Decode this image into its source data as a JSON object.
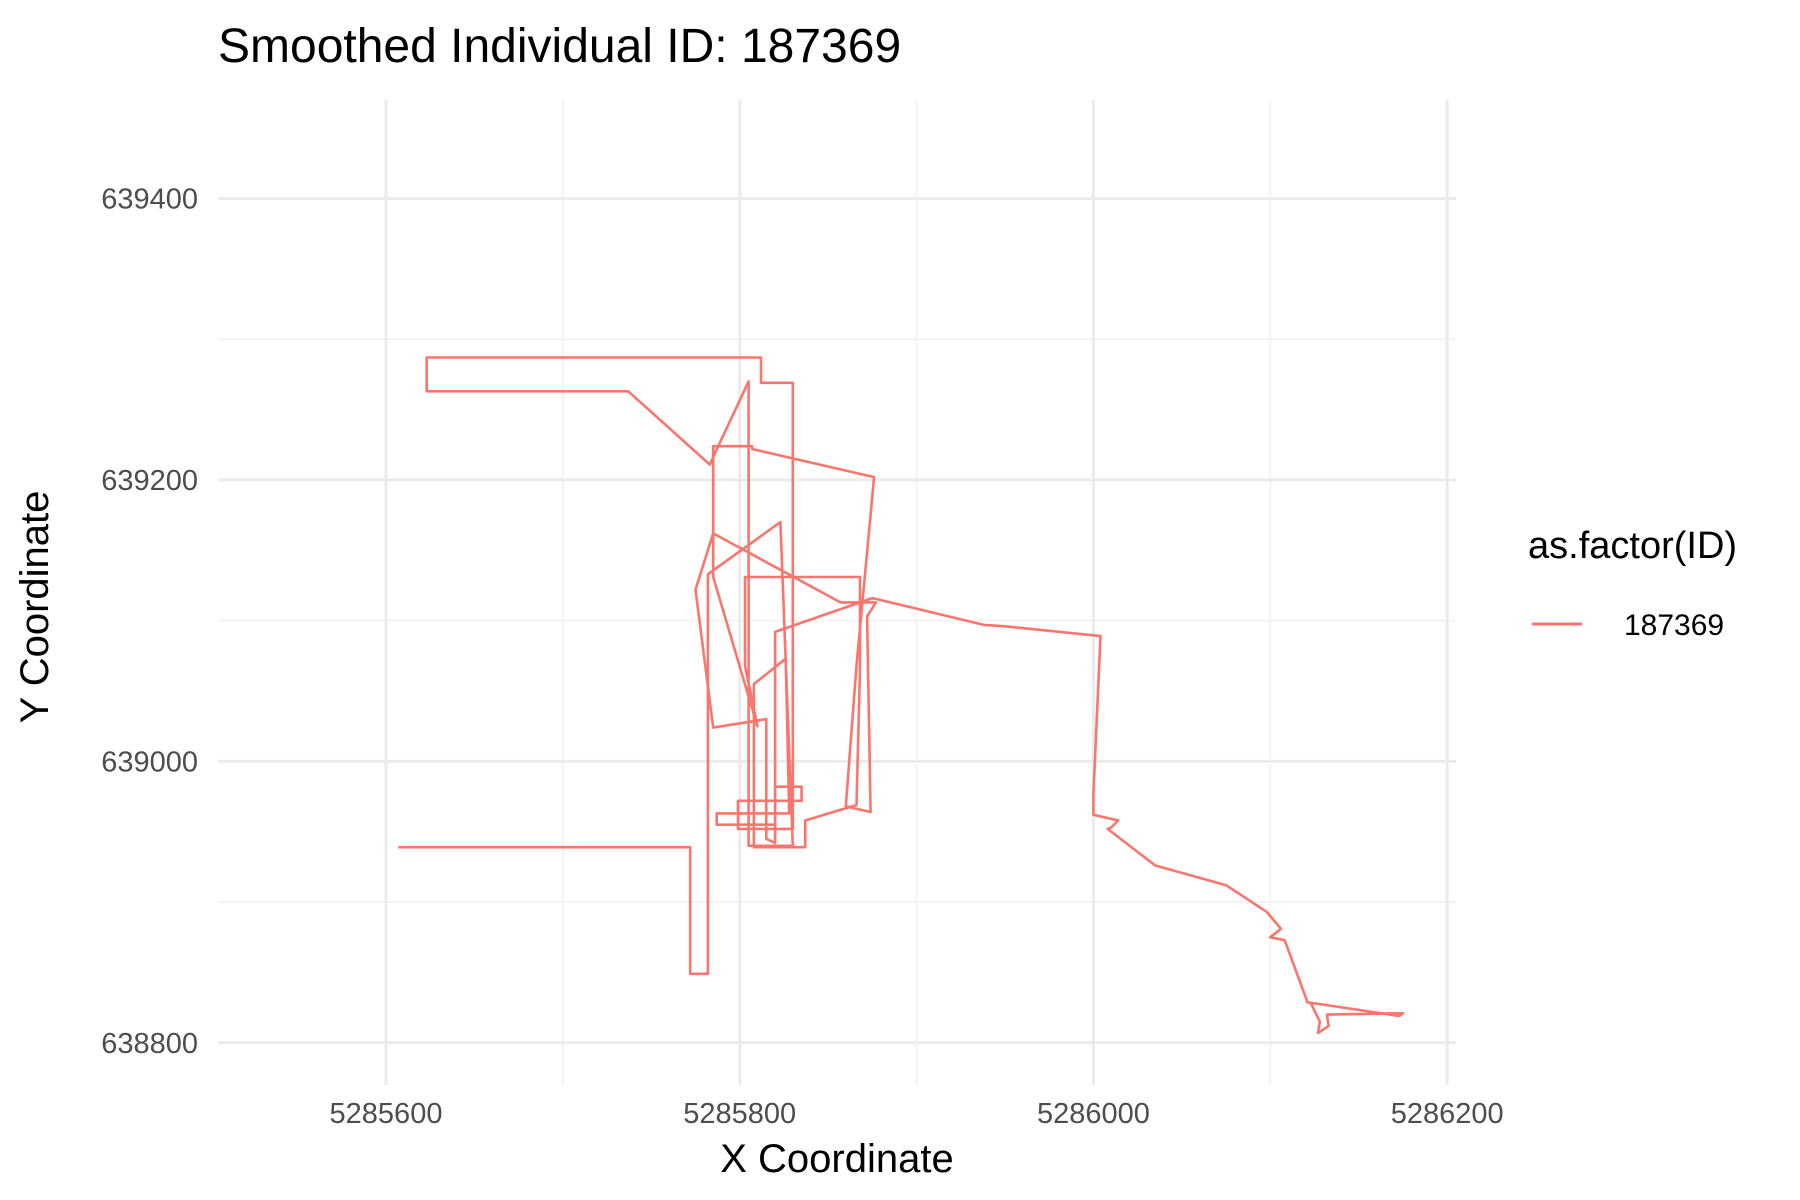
{
  "chart_data": {
    "type": "line",
    "title": "Smoothed Individual ID: 187369",
    "xlabel": "X Coordinate",
    "ylabel": "Y Coordinate",
    "xlim": [
      5285505,
      5286205
    ],
    "ylim": [
      638770,
      639470
    ],
    "x_ticks": [
      5285600,
      5285800,
      5286000,
      5286200
    ],
    "y_ticks": [
      638800,
      639000,
      639200,
      639400
    ],
    "grid": true,
    "legend": {
      "title": "as.factor(ID)",
      "position": "right"
    },
    "series": [
      {
        "name": "187369",
        "color": "#F8766D",
        "points": [
          [
            5285607,
            638939
          ],
          [
            5285772,
            638939
          ],
          [
            5285772,
            638849
          ],
          [
            5285782,
            638849
          ],
          [
            5285782,
            639133
          ],
          [
            5285823,
            639170
          ],
          [
            5285830,
            638940
          ],
          [
            5285805,
            638940
          ],
          [
            5285805,
            639270
          ],
          [
            5285783,
            639211
          ],
          [
            5285737,
            639263
          ],
          [
            5285623,
            639263
          ],
          [
            5285623,
            639287
          ],
          [
            5285812,
            639287
          ],
          [
            5285812,
            639269
          ],
          [
            5285830,
            639269
          ],
          [
            5285830,
            638952
          ],
          [
            5285799,
            638952
          ],
          [
            5285799,
            638972
          ],
          [
            5285835,
            638972
          ],
          [
            5285835,
            638982
          ],
          [
            5285820,
            638982
          ],
          [
            5285820,
            638955
          ],
          [
            5285787,
            638955
          ],
          [
            5285787,
            638963
          ],
          [
            5285828,
            638963
          ],
          [
            5285826,
            639073
          ],
          [
            5285808,
            639055
          ],
          [
            5285808,
            638939
          ],
          [
            5285837,
            638939
          ],
          [
            5285837,
            638958
          ],
          [
            5285866,
            638969
          ],
          [
            5285868,
            639066
          ],
          [
            5285868,
            639131
          ],
          [
            5285803,
            639131
          ],
          [
            5285803,
            639068
          ],
          [
            5285810,
            639025
          ],
          [
            5285785,
            639131
          ],
          [
            5285785,
            639224
          ],
          [
            5285807,
            639224
          ],
          [
            5285807,
            639222
          ],
          [
            5285876,
            639202
          ],
          [
            5285866,
            639068
          ],
          [
            5285860,
            638968
          ],
          [
            5285874,
            638964
          ],
          [
            5285872,
            639103
          ],
          [
            5285877,
            639113
          ],
          [
            5285857,
            639113
          ],
          [
            5285785,
            639162
          ],
          [
            5285775,
            639122
          ],
          [
            5285785,
            639024
          ],
          [
            5285815,
            639030
          ],
          [
            5285815,
            638945
          ],
          [
            5285820,
            638942
          ],
          [
            5285820,
            639092
          ],
          [
            5285875,
            639116
          ],
          [
            5285938,
            639097
          ],
          [
            5285950,
            639096
          ],
          [
            5286004,
            639089
          ],
          [
            5286000,
            638977
          ],
          [
            5286000,
            638962
          ],
          [
            5286014,
            638958
          ],
          [
            5286010,
            638953
          ],
          [
            5286008,
            638952
          ],
          [
            5286035,
            638926
          ],
          [
            5286075,
            638912
          ],
          [
            5286098,
            638893
          ],
          [
            5286106,
            638881
          ],
          [
            5286100,
            638875
          ],
          [
            5286108,
            638873
          ],
          [
            5286109,
            638870
          ],
          [
            5286121,
            638829
          ],
          [
            5286123,
            638828
          ],
          [
            5286128,
            638815
          ],
          [
            5286127,
            638807
          ],
          [
            5286133,
            638812
          ],
          [
            5286132,
            638820
          ],
          [
            5286175,
            638821
          ],
          [
            5286173,
            638819
          ],
          [
            5286120,
            638829
          ]
        ]
      }
    ]
  },
  "colors": {
    "series": "#F8766D",
    "grid": "#ebebeb",
    "tick_text": "#4d4d4d"
  }
}
